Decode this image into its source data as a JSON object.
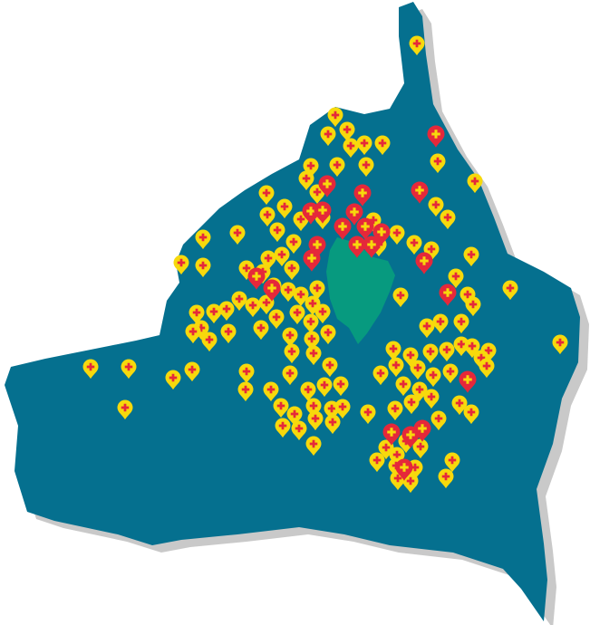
{
  "map": {
    "land_color": "#05708f",
    "shadow_color": "#c9c9c9",
    "lake_color": "#079a7f",
    "pins": {
      "standard": {
        "fill": "#f7d90c",
        "cross": "#e5283a",
        "icon": "map-pin-plus-icon"
      },
      "highlighted": {
        "fill": "#e5283a",
        "cross": "#f7d90c",
        "icon": "map-pin-plus-icon"
      }
    }
  }
}
